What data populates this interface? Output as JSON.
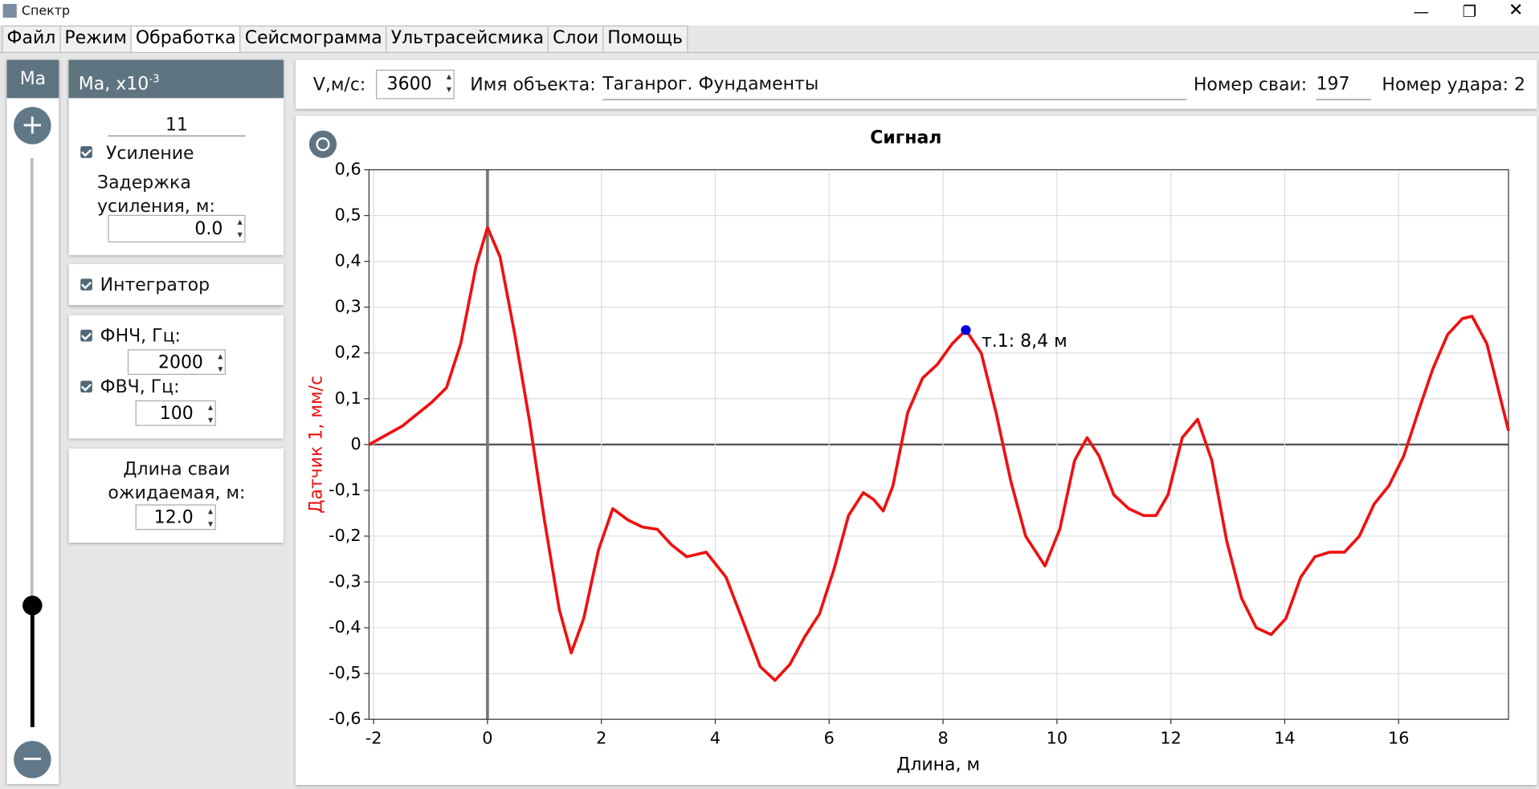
{
  "window": {
    "title": "Спектр"
  },
  "menu": [
    "Файл",
    "Режим",
    "Обработка",
    "Сейсмограмма",
    "Ультрасейсмика",
    "Слои",
    "Помощь"
  ],
  "slider_label": "Ма",
  "gain": {
    "title": "Ма, x10",
    "title_sup": "-3",
    "value": "11",
    "checkbox": "Усиление",
    "delay_label": "Задержка усиления, м:",
    "delay_value": "0.0"
  },
  "integrator": "Интегратор",
  "filters": {
    "lpf_label": "ФНЧ, Гц:",
    "lpf_value": "2000",
    "hpf_label": "ФВЧ, Гц:",
    "hpf_value": "100"
  },
  "pile_length": {
    "label": "Длина сваи ожидаемая, м:",
    "value": "12.0"
  },
  "toolbar": {
    "velocity_label": "V,м/с:",
    "velocity": "3600",
    "object_label": "Имя объекта:",
    "object": "Таганрог. Фундаменты",
    "pile_label": "Номер сваи:",
    "pile": "197",
    "impact": "Номер удара: 2"
  },
  "chart_data": {
    "type": "line",
    "title": "Сигнал",
    "x_label": "Длина, м",
    "y_label": "Датчик 1, мм/с",
    "xlim": [
      -2.08,
      17.93
    ],
    "ylim": [
      -0.6,
      0.6
    ],
    "xticks": [
      -2,
      0,
      2,
      4,
      6,
      8,
      10,
      12,
      14,
      16
    ],
    "yticks": [
      {
        "value": 0.6,
        "label": "0,6"
      },
      {
        "value": 0.5,
        "label": "0,5"
      },
      {
        "value": 0.4,
        "label": "0,4"
      },
      {
        "value": 0.3,
        "label": "0,3"
      },
      {
        "value": 0.2,
        "label": "0,2"
      },
      {
        "value": 0.1,
        "label": "0,1"
      },
      0,
      {
        "value": -0.1,
        "label": "-0,1"
      },
      {
        "value": -0.2,
        "label": "-0,2"
      },
      {
        "value": -0.3,
        "label": "-0,3"
      },
      {
        "value": -0.4,
        "label": "-0,4"
      },
      {
        "value": -0.5,
        "label": "-0,5"
      },
      {
        "value": -0.6,
        "label": "-0,6"
      }
    ],
    "grid": true,
    "x": [
      -2.08,
      -1.5,
      -0.98,
      -0.72,
      -0.47,
      -0.2,
      0,
      0.22,
      0.48,
      0.74,
      1.0,
      1.26,
      1.47,
      1.69,
      1.95,
      2.2,
      2.47,
      2.72,
      2.98,
      3.24,
      3.5,
      3.84,
      4.19,
      4.53,
      4.79,
      5.05,
      5.31,
      5.57,
      5.83,
      6.09,
      6.34,
      6.6,
      6.78,
      6.95,
      7.12,
      7.38,
      7.64,
      7.9,
      8.16,
      8.4,
      8.67,
      8.93,
      9.19,
      9.45,
      9.79,
      10.05,
      10.31,
      10.53,
      10.74,
      11.0,
      11.26,
      11.52,
      11.74,
      11.95,
      12.2,
      12.47,
      12.72,
      12.98,
      13.24,
      13.5,
      13.76,
      14.02,
      14.28,
      14.53,
      14.79,
      15.05,
      15.31,
      15.57,
      15.83,
      16.09,
      16.34,
      16.6,
      16.86,
      17.12,
      17.29,
      17.55,
      17.93
    ],
    "series": [
      {
        "name": "Датчик 1",
        "color": "#ee1111",
        "values": [
          0.0,
          0.04,
          0.092,
          0.124,
          0.22,
          0.39,
          0.474,
          0.41,
          0.24,
          0.05,
          -0.165,
          -0.36,
          -0.455,
          -0.38,
          -0.23,
          -0.14,
          -0.165,
          -0.18,
          -0.185,
          -0.22,
          -0.245,
          -0.235,
          -0.29,
          -0.4,
          -0.485,
          -0.515,
          -0.48,
          -0.42,
          -0.37,
          -0.27,
          -0.155,
          -0.105,
          -0.12,
          -0.145,
          -0.09,
          0.07,
          0.145,
          0.175,
          0.22,
          0.25,
          0.2,
          0.07,
          -0.08,
          -0.2,
          -0.265,
          -0.185,
          -0.035,
          0.015,
          -0.025,
          -0.11,
          -0.14,
          -0.155,
          -0.155,
          -0.11,
          0.015,
          0.055,
          -0.035,
          -0.21,
          -0.335,
          -0.4,
          -0.415,
          -0.38,
          -0.29,
          -0.245,
          -0.235,
          -0.235,
          -0.2,
          -0.13,
          -0.09,
          -0.025,
          0.07,
          0.165,
          0.24,
          0.275,
          0.28,
          0.22,
          0.03
        ]
      }
    ],
    "annotation": {
      "x": 8.4,
      "y": 0.25,
      "label": "т.1: 8,4 м",
      "color": "#0000dd"
    }
  }
}
